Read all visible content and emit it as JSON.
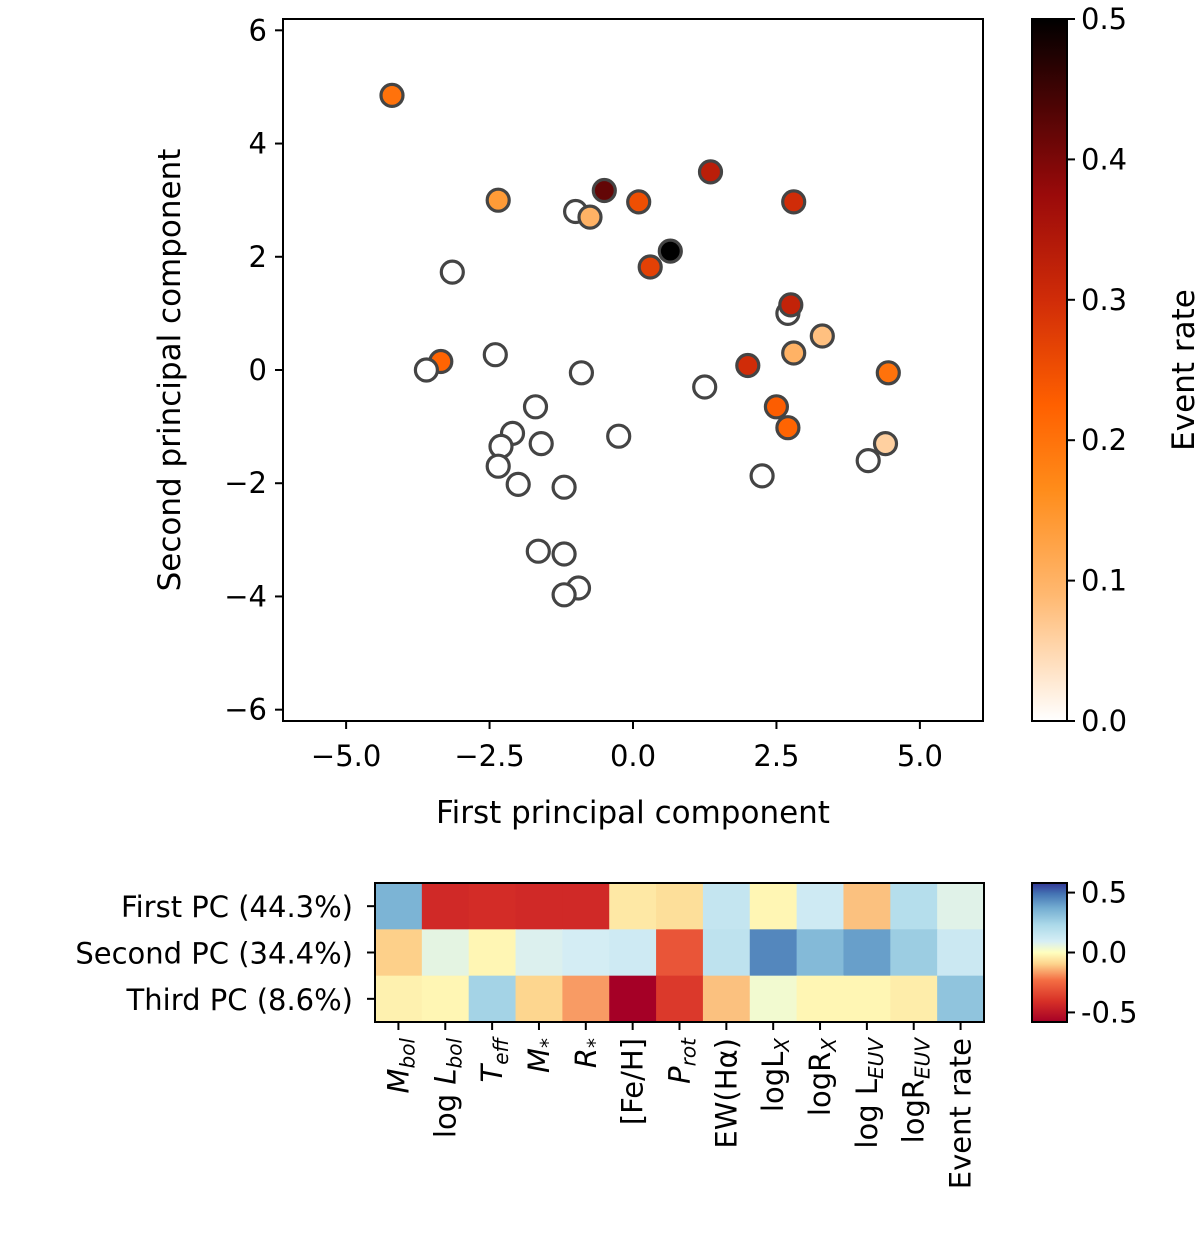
{
  "chart_data": [
    {
      "type": "scatter",
      "xlabel": "First principal component",
      "ylabel": "Second principal component",
      "xlim": [
        -6.1,
        6.1
      ],
      "ylim": [
        -6.2,
        6.2
      ],
      "xticks": [
        -5.0,
        -2.5,
        0.0,
        2.5,
        5.0
      ],
      "xtick_labels": [
        "−5.0",
        "−2.5",
        "0.0",
        "2.5",
        "5.0"
      ],
      "yticks": [
        -6,
        -4,
        -2,
        0,
        2,
        4,
        6
      ],
      "ytick_labels": [
        "−6",
        "−4",
        "−2",
        "0",
        "2",
        "4",
        "6"
      ],
      "color_label": "Event rate",
      "color_range": [
        0,
        0.5
      ],
      "colorbar_ticks": [
        0.0,
        0.1,
        0.2,
        0.3,
        0.4,
        0.5
      ],
      "colorbar_tick_labels": [
        "0.0",
        "0.1",
        "0.2",
        "0.3",
        "0.4",
        "0.5"
      ],
      "points": [
        {
          "x": -4.2,
          "y": 4.85,
          "c": 0.2
        },
        {
          "x": -2.35,
          "y": 3.0,
          "c": 0.14
        },
        {
          "x": -1.0,
          "y": 2.8,
          "c": 0.0
        },
        {
          "x": -0.75,
          "y": 2.7,
          "c": 0.1
        },
        {
          "x": -0.5,
          "y": 3.17,
          "c": 0.42
        },
        {
          "x": 0.1,
          "y": 2.97,
          "c": 0.25
        },
        {
          "x": 0.65,
          "y": 2.1,
          "c": 0.5
        },
        {
          "x": 0.3,
          "y": 1.82,
          "c": 0.27
        },
        {
          "x": 1.35,
          "y": 3.5,
          "c": 0.33
        },
        {
          "x": 2.8,
          "y": 2.97,
          "c": 0.3
        },
        {
          "x": -3.15,
          "y": 1.73,
          "c": 0.0
        },
        {
          "x": 2.7,
          "y": 1.0,
          "c": 0.0
        },
        {
          "x": 2.75,
          "y": 1.15,
          "c": 0.32
        },
        {
          "x": 3.3,
          "y": 0.6,
          "c": 0.08
        },
        {
          "x": 2.8,
          "y": 0.3,
          "c": 0.1
        },
        {
          "x": -3.35,
          "y": 0.15,
          "c": 0.22
        },
        {
          "x": -3.6,
          "y": 0.0,
          "c": 0.0
        },
        {
          "x": -2.4,
          "y": 0.27,
          "c": 0.0
        },
        {
          "x": -0.9,
          "y": -0.05,
          "c": 0.0
        },
        {
          "x": 1.25,
          "y": -0.3,
          "c": 0.0
        },
        {
          "x": 2.0,
          "y": 0.08,
          "c": 0.3
        },
        {
          "x": 4.45,
          "y": -0.05,
          "c": 0.2
        },
        {
          "x": -1.7,
          "y": -0.65,
          "c": 0.0
        },
        {
          "x": 2.5,
          "y": -0.65,
          "c": 0.23
        },
        {
          "x": -2.1,
          "y": -1.12,
          "c": 0.0
        },
        {
          "x": -0.25,
          "y": -1.17,
          "c": 0.0
        },
        {
          "x": -1.6,
          "y": -1.3,
          "c": 0.0
        },
        {
          "x": -2.3,
          "y": -1.35,
          "c": 0.0
        },
        {
          "x": 2.7,
          "y": -1.02,
          "c": 0.22
        },
        {
          "x": 4.4,
          "y": -1.3,
          "c": 0.06
        },
        {
          "x": -2.35,
          "y": -1.7,
          "c": 0.0
        },
        {
          "x": -2.0,
          "y": -2.02,
          "c": 0.0
        },
        {
          "x": -1.2,
          "y": -2.07,
          "c": 0.0
        },
        {
          "x": 2.25,
          "y": -1.87,
          "c": 0.0
        },
        {
          "x": 4.1,
          "y": -1.6,
          "c": 0.0
        },
        {
          "x": -1.65,
          "y": -3.2,
          "c": 0.0
        },
        {
          "x": -1.2,
          "y": -3.25,
          "c": 0.0
        },
        {
          "x": -0.95,
          "y": -3.85,
          "c": 0.0
        },
        {
          "x": -1.2,
          "y": -3.97,
          "c": 0.0
        }
      ]
    },
    {
      "type": "heatmap",
      "rows": [
        "First PC (44.3%)",
        "Second PC (34.4%)",
        "Third PC (8.6%)"
      ],
      "columns": [
        {
          "main": "M",
          "sub": "bol",
          "italic": true
        },
        {
          "main": "log L",
          "sub": "bol",
          "italic": "partial"
        },
        {
          "main": "T",
          "sub": "eff",
          "italic": true
        },
        {
          "main": "M",
          "sub": "*",
          "italic": true
        },
        {
          "main": "R",
          "sub": "*",
          "italic": true
        },
        {
          "main": "[Fe/H]",
          "sub": "",
          "italic": false
        },
        {
          "main": "P",
          "sub": "rot",
          "italic": true
        },
        {
          "main": "EW(Hα)",
          "sub": "",
          "italic": false
        },
        {
          "main": "logL",
          "sub": "X",
          "italic": false
        },
        {
          "main": "logR",
          "sub": "X",
          "italic": false
        },
        {
          "main": "log L",
          "sub": "EUV",
          "italic": false
        },
        {
          "main": "logR",
          "sub": "EUV",
          "italic": false
        },
        {
          "main": "Event rate",
          "sub": "",
          "italic": false
        }
      ],
      "values": [
        [
          0.35,
          -0.43,
          -0.42,
          -0.43,
          -0.43,
          -0.05,
          -0.07,
          0.15,
          -0.02,
          0.12,
          -0.12,
          0.2,
          0.07
        ],
        [
          -0.1,
          0.06,
          -0.02,
          0.08,
          0.1,
          0.12,
          -0.3,
          0.17,
          0.45,
          0.33,
          0.4,
          0.27,
          0.13
        ],
        [
          -0.03,
          -0.02,
          0.25,
          -0.09,
          -0.17,
          -0.58,
          -0.38,
          -0.12,
          0.03,
          -0.02,
          -0.02,
          -0.04,
          0.3
        ]
      ],
      "color_range": [
        -0.58,
        0.58
      ],
      "colorbar_ticks": [
        0.5,
        0.0,
        -0.5
      ],
      "colorbar_tick_labels": [
        "0.5",
        "0.0",
        "-0.5"
      ]
    }
  ]
}
